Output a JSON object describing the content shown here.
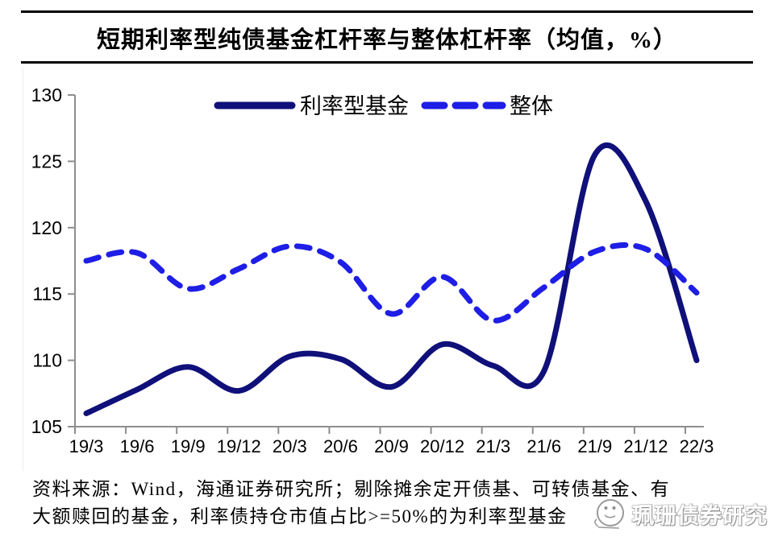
{
  "chart_data": {
    "type": "line",
    "title": "短期利率型纯债基金杠杆率与整体杠杆率（均值，%）",
    "x_labels": [
      "19/3",
      "19/6",
      "19/9",
      "19/12",
      "20/3",
      "20/6",
      "20/9",
      "20/12",
      "21/3",
      "21/6",
      "21/9",
      "21/12",
      "22/3"
    ],
    "ylim": [
      105,
      130
    ],
    "y_ticks": [
      105,
      110,
      115,
      120,
      125,
      130
    ],
    "grid": false,
    "legend_position": "top-inside",
    "series": [
      {
        "name": "利率型基金",
        "style": "solid",
        "color": "#10107a",
        "values": [
          106.0,
          107.8,
          109.5,
          107.7,
          110.3,
          110.1,
          108.0,
          111.2,
          109.6,
          109.2,
          125.5,
          122.0,
          110.0
        ]
      },
      {
        "name": "整体",
        "style": "dashed",
        "color": "#1e1ee6",
        "values": [
          117.5,
          118.1,
          115.4,
          116.9,
          118.6,
          117.4,
          113.5,
          116.3,
          113.0,
          115.5,
          118.2,
          118.4,
          115.1
        ]
      }
    ],
    "axis_color": "#8e8e8e",
    "tick_label_color": "#000000"
  },
  "footer": {
    "line1": "资料来源：Wind，海通证券研究所；剔除摊余定开债基、可转债基金、有",
    "line2": "大额赎回的基金，利率债持仓市值占比>=50%的为利率型基金"
  },
  "watermark": {
    "text": "珮珊债券研究",
    "logo_icon": "chick-face-icon"
  }
}
